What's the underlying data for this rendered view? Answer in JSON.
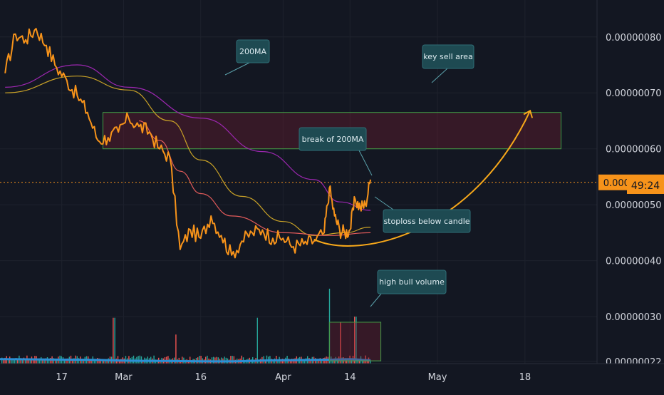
{
  "chart_data": {
    "type": "line",
    "symbol": "",
    "x_ticks": [
      "17",
      "Mar",
      "16",
      "Apr",
      "14",
      "May",
      "18"
    ],
    "y_ticks": [
      "0.00000080",
      "0.00000070",
      "0.00000060",
      "0.00000050",
      "0.00000040",
      "0.00000030",
      "0.00000022"
    ],
    "price_label": "0.00000054",
    "countdown_label": "49:24",
    "price_series": {
      "name": "price",
      "x": [
        "Feb 06",
        "Feb 08",
        "Feb 10",
        "Feb 12",
        "Feb 14",
        "Feb 16",
        "Feb 18",
        "Feb 20",
        "Feb 22",
        "Feb 24",
        "Feb 26",
        "Feb 28",
        "Mar 02",
        "Mar 04",
        "Mar 06",
        "Mar 08",
        "Mar 10",
        "Mar 12",
        "Mar 14",
        "Mar 16",
        "Mar 18",
        "Mar 20",
        "Mar 22",
        "Mar 24",
        "Mar 26",
        "Mar 28",
        "Mar 30",
        "Apr 01",
        "Apr 03",
        "Apr 05",
        "Apr 07",
        "Apr 09",
        "Apr 10",
        "Apr 11",
        "Apr 12",
        "Apr 13",
        "Apr 14",
        "Apr 15",
        "Apr 16",
        "Apr 17",
        "Apr 18"
      ],
      "y": [
        7.35e-07,
        8.05e-07,
        7.95e-07,
        8.15e-07,
        7.85e-07,
        7.45e-07,
        7.22e-07,
        6.95e-07,
        6.65e-07,
        6.15e-07,
        6.2e-07,
        6.3e-07,
        6.55e-07,
        6.4e-07,
        6.3e-07,
        6e-07,
        5.85e-07,
        4.2e-07,
        4.55e-07,
        4.4e-07,
        4.8e-07,
        4.45e-07,
        4.1e-07,
        4.35e-07,
        4.5e-07,
        4.55e-07,
        4.4e-07,
        4.4e-07,
        4.25e-07,
        4.3e-07,
        4.35e-07,
        4.5e-07,
        5.3e-07,
        4.8e-07,
        4.55e-07,
        4.5e-07,
        4.55e-07,
        5.1e-07,
        4.95e-07,
        5e-07,
        5.45e-07
      ]
    },
    "ma_series": [
      {
        "name": "200MA",
        "x": [
          "Feb 06",
          "Feb 20",
          "Mar 02",
          "Mar 16",
          "Mar 28",
          "Apr 07",
          "Apr 12",
          "Apr 18"
        ],
        "y": [
          7.1e-07,
          7.5e-07,
          7.1e-07,
          6.55e-07,
          5.95e-07,
          5.45e-07,
          5.05e-07,
          4.9e-07
        ]
      },
      {
        "name": "",
        "x": [
          "Feb 06",
          "Feb 20",
          "Mar 02",
          "Mar 10",
          "Mar 16",
          "Mar 24",
          "Apr 01",
          "Apr 07",
          "Apr 13",
          "Apr 18"
        ],
        "y": [
          7e-07,
          7.3e-07,
          7.05e-07,
          6.5e-07,
          5.8e-07,
          5.15e-07,
          4.7e-07,
          4.45e-07,
          4.5e-07,
          4.6e-07
        ]
      },
      {
        "name": "",
        "x": [
          "Mar 04",
          "Mar 08",
          "Mar 12",
          "Mar 16",
          "Mar 22",
          "Apr 01",
          "Apr 10",
          "Apr 18"
        ],
        "y": [
          6.5e-07,
          6.15e-07,
          5.6e-07,
          5.2e-07,
          4.8e-07,
          4.5e-07,
          4.45e-07,
          4.5e-07
        ]
      }
    ],
    "sell_zone": {
      "x_range": [
        "Feb 25",
        "May 25"
      ],
      "y_range": [
        6e-07,
        6.65e-07
      ]
    },
    "volume_zone": {
      "x_range": [
        "Apr 10",
        "Apr 20"
      ],
      "y_range": [
        2.21e-07,
        2.9e-07
      ]
    },
    "annotations": [
      {
        "text": "200MA"
      },
      {
        "text": "key sell area"
      },
      {
        "text": "break of 200MA"
      },
      {
        "text": "stoploss below candle"
      },
      {
        "text": "high bull volume"
      }
    ],
    "y_range": [
      2.16e-07,
      8.66e-07
    ],
    "x_range": [
      "Feb 05",
      "Jun 01"
    ],
    "grid": true,
    "colors": {
      "background": "#131722",
      "price": "#f7931a",
      "ma200": "#9c27b0",
      "ma_slow": "#c9a227",
      "ma_fast": "#e05a5a",
      "volume_up": "#26a69a",
      "volume_down": "#ef5350",
      "volume_ma": "#2b8fd6",
      "sell_zone_border": "#43a047",
      "callout_bg": "#1e4a52",
      "callout_text": "#dbe9ee",
      "axis_text": "#d1d4dc",
      "price_tag": "#f7931a"
    }
  }
}
